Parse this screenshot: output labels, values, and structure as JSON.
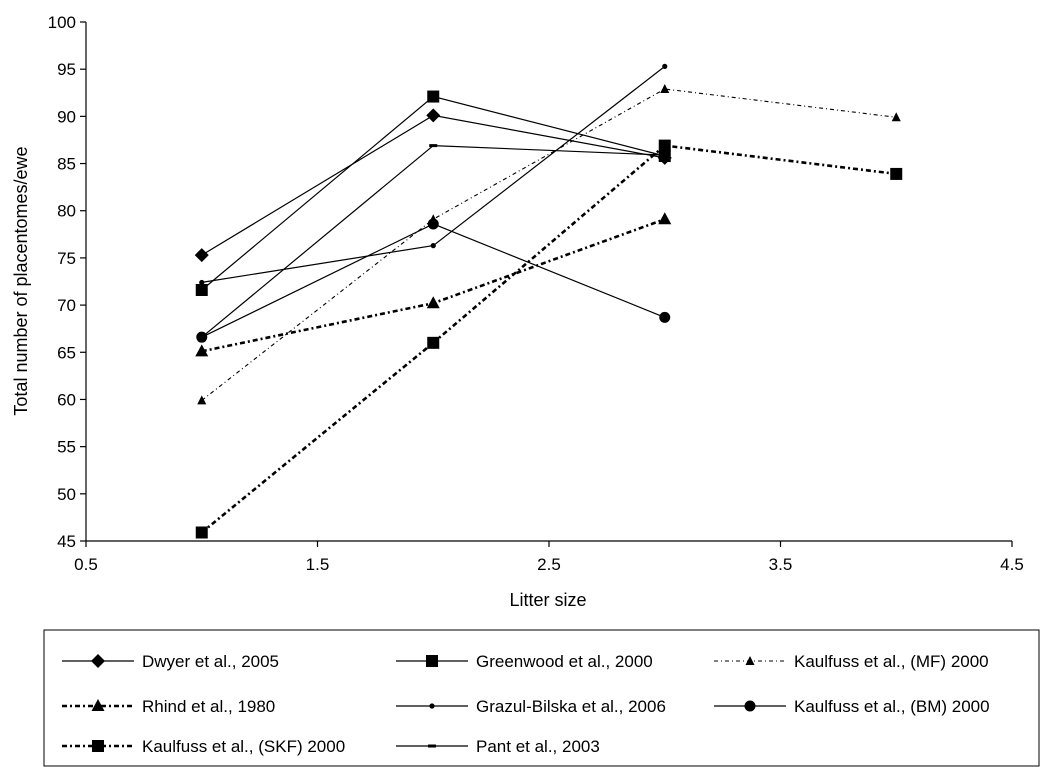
{
  "chart_data": {
    "type": "line",
    "title": "",
    "xlabel": "Litter size",
    "ylabel": "Total number of placentomes/ewe",
    "xlim": [
      0.5,
      4.5
    ],
    "ylim": [
      45,
      100
    ],
    "x_ticks": [
      "0.5",
      "1.5",
      "2.5",
      "3.5",
      "4.5"
    ],
    "y_ticks": [
      "45",
      "50",
      "55",
      "60",
      "65",
      "70",
      "75",
      "80",
      "85",
      "90",
      "95",
      "100"
    ],
    "grid": false,
    "legend_position": "bottom",
    "series": [
      {
        "name": "Dwyer et al., 2005",
        "marker": "diamond",
        "line_style": "solid",
        "x": [
          1,
          2,
          3
        ],
        "y": [
          75.3,
          90.1,
          85.6
        ]
      },
      {
        "name": "Greenwood et al., 2000",
        "marker": "square",
        "line_style": "solid",
        "x": [
          1,
          2,
          3
        ],
        "y": [
          71.6,
          92.1,
          85.8
        ]
      },
      {
        "name": "Kaulfuss et al., (MF) 2000",
        "marker": "triangle-small",
        "line_style": "dashed-thin",
        "x": [
          1,
          2,
          3,
          4
        ],
        "y": [
          59.9,
          79.1,
          92.9,
          89.9
        ]
      },
      {
        "name": "Rhind et al., 1980",
        "marker": "triangle",
        "line_style": "dashed-thick",
        "x": [
          1,
          2,
          3
        ],
        "y": [
          65.1,
          70.2,
          79.1
        ]
      },
      {
        "name": "Grazul-Bilska et al., 2006",
        "marker": "dot-small",
        "line_style": "solid",
        "x": [
          1,
          2,
          3
        ],
        "y": [
          72.4,
          76.3,
          95.3
        ]
      },
      {
        "name": "Kaulfuss et al., (BM) 2000",
        "marker": "circle",
        "line_style": "solid",
        "x": [
          1,
          2,
          3
        ],
        "y": [
          66.6,
          78.6,
          68.7
        ]
      },
      {
        "name": "Kaulfuss et al., (SKF) 2000",
        "marker": "square",
        "line_style": "dashed-thick",
        "x": [
          1,
          2,
          3,
          4
        ],
        "y": [
          45.9,
          66.0,
          86.9,
          83.9
        ]
      },
      {
        "name": "Pant et al., 2003",
        "marker": "dash",
        "line_style": "solid",
        "x": [
          1,
          2,
          3
        ],
        "y": [
          66.6,
          86.9,
          85.9
        ]
      }
    ]
  }
}
